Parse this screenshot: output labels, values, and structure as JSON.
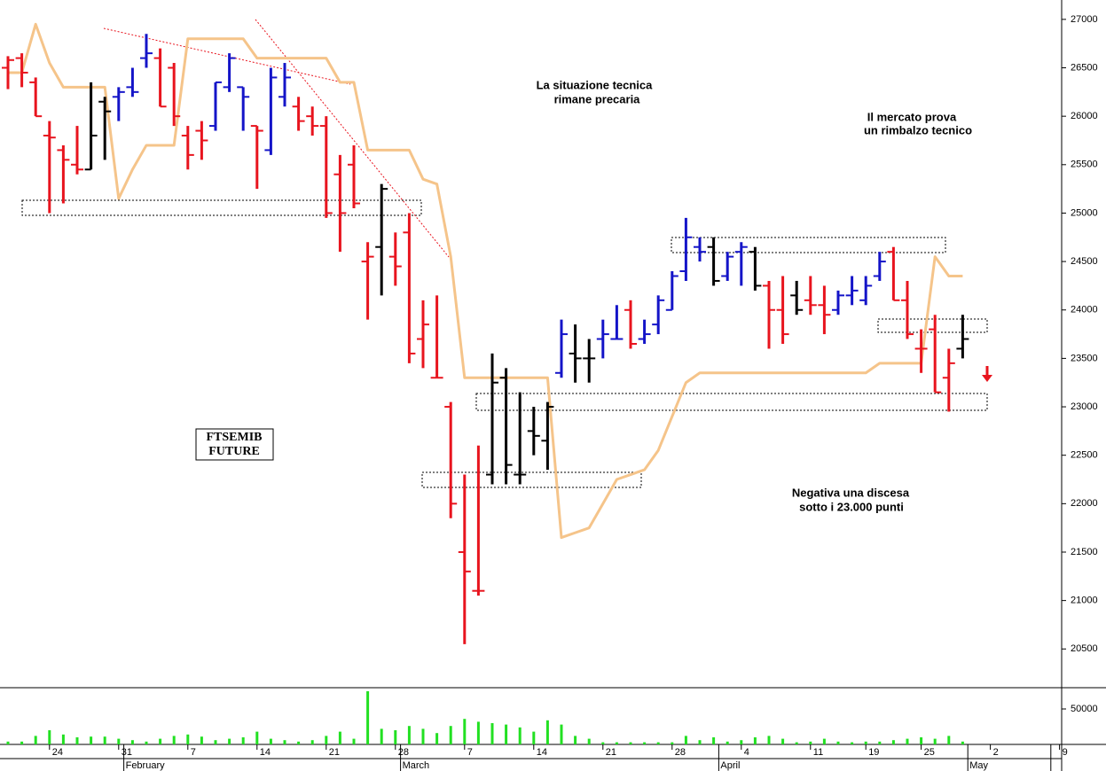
{
  "chart_data": {
    "type": "ohlc",
    "categories": [
      null,
      null,
      null,
      "24",
      null,
      null,
      null,
      null,
      "31",
      null,
      null,
      null,
      null,
      "7",
      null,
      null,
      null,
      null,
      "14",
      null,
      null,
      null,
      null,
      "21",
      null,
      null,
      null,
      null,
      "28",
      null,
      null,
      null,
      null,
      "7",
      null,
      null,
      null,
      null,
      "14",
      null,
      null,
      null,
      null,
      "21",
      null,
      null,
      null,
      null,
      "28",
      null,
      null,
      null,
      null,
      "4",
      null,
      null,
      null,
      null,
      "11",
      null,
      null,
      null,
      "19",
      null,
      null,
      null,
      "25",
      null,
      null,
      null,
      null,
      "2",
      null,
      null,
      null,
      null,
      "9"
    ],
    "months": [
      null,
      null,
      null,
      null,
      null,
      null,
      null,
      null,
      null,
      "February",
      null,
      null,
      null,
      null,
      null,
      null,
      null,
      null,
      null,
      null,
      null,
      null,
      null,
      null,
      null,
      null,
      null,
      null,
      null,
      "March",
      null,
      null,
      null,
      null,
      null,
      null,
      null,
      null,
      null,
      null,
      null,
      null,
      null,
      null,
      null,
      null,
      null,
      null,
      null,
      null,
      null,
      null,
      "April",
      null,
      null,
      null,
      null,
      null,
      null,
      null,
      null,
      null,
      null,
      null,
      null,
      null,
      null,
      null,
      null,
      null,
      "May",
      null,
      null,
      null,
      null,
      null
    ],
    "open": [
      26500,
      26600,
      26350,
      25800,
      25650,
      25500,
      25450,
      26150,
      26200,
      26300,
      26600,
      26600,
      26500,
      25800,
      25850,
      25900,
      26300,
      26300,
      25900,
      25650,
      26200,
      26100,
      26000,
      25900,
      25400,
      25500,
      24500,
      24650,
      24550,
      24800,
      23700,
      23300,
      23000,
      21500,
      21100,
      22300,
      23300,
      22300,
      22750,
      22650,
      23350,
      23550,
      23500,
      23700,
      23700,
      24000,
      23700,
      23850,
      24000,
      24400,
      24650,
      24650,
      24350,
      24600,
      24600,
      24250,
      24000,
      24150,
      24100,
      24050,
      24000,
      24150,
      24100,
      24350,
      24600,
      24100,
      23600,
      23800,
      23300,
      23600,
      null,
      null,
      null,
      null,
      null,
      null,
      null
    ],
    "high": [
      26620,
      26650,
      26400,
      25950,
      25700,
      25900,
      26350,
      26200,
      26300,
      26500,
      26850,
      26700,
      26550,
      25900,
      25950,
      26350,
      26650,
      26300,
      25900,
      26500,
      26550,
      26200,
      26100,
      26000,
      25600,
      25700,
      24700,
      25300,
      24800,
      25000,
      24100,
      24150,
      23050,
      22300,
      22600,
      23550,
      23400,
      23150,
      23000,
      23050,
      23900,
      23850,
      23700,
      23900,
      24050,
      24100,
      23900,
      24150,
      24400,
      24950,
      24750,
      24750,
      24600,
      24700,
      24650,
      24300,
      24350,
      24300,
      24350,
      24250,
      24200,
      24350,
      24350,
      24600,
      24650,
      24300,
      23800,
      23950,
      23600,
      23950,
      null,
      null,
      null,
      null,
      null,
      null,
      null
    ],
    "low": [
      26280,
      26300,
      26000,
      25000,
      25100,
      25400,
      25450,
      25550,
      25950,
      26200,
      26500,
      26100,
      25900,
      25450,
      25550,
      25850,
      26250,
      25850,
      25250,
      25600,
      26100,
      25850,
      25800,
      24950,
      24600,
      25050,
      23900,
      24150,
      24250,
      23450,
      23400,
      23300,
      21850,
      20550,
      21050,
      22200,
      22200,
      22200,
      22500,
      22350,
      23300,
      23250,
      23250,
      23500,
      23700,
      23600,
      23650,
      23750,
      24000,
      24300,
      24500,
      24250,
      24300,
      24250,
      24200,
      23600,
      23650,
      23950,
      23950,
      23750,
      23950,
      24050,
      24050,
      24300,
      24100,
      23700,
      23350,
      23150,
      22950,
      23500,
      null,
      null,
      null,
      null,
      null,
      null,
      null
    ],
    "close": [
      26580,
      26450,
      26000,
      25780,
      25550,
      25450,
      25800,
      26050,
      26250,
      26250,
      26650,
      26100,
      26000,
      25600,
      25750,
      26350,
      26600,
      26200,
      25850,
      26400,
      26400,
      25950,
      25900,
      25000,
      25000,
      25100,
      24550,
      25250,
      24450,
      23550,
      23850,
      23300,
      22000,
      21300,
      21100,
      23250,
      22400,
      22300,
      22700,
      23000,
      23750,
      23500,
      23500,
      23750,
      23700,
      23650,
      23750,
      24100,
      24350,
      24750,
      24600,
      24300,
      24550,
      24650,
      24250,
      24000,
      23750,
      24000,
      24050,
      23950,
      24150,
      24200,
      24250,
      24500,
      24100,
      23750,
      23600,
      23150,
      23450,
      23700,
      null,
      null,
      null,
      null,
      null,
      null,
      null
    ],
    "bar_colors": [
      "#e8141e",
      "#e8141e",
      "#e8141e",
      "#e8141e",
      "#e8141e",
      "#e8141e",
      "#000000",
      "#000000",
      "#1414c8",
      "#1414c8",
      "#1414c8",
      "#e8141e",
      "#e8141e",
      "#e8141e",
      "#e8141e",
      "#1414c8",
      "#1414c8",
      "#1414c8",
      "#e8141e",
      "#1414c8",
      "#1414c8",
      "#e8141e",
      "#e8141e",
      "#e8141e",
      "#e8141e",
      "#e8141e",
      "#e8141e",
      "#000000",
      "#e8141e",
      "#e8141e",
      "#e8141e",
      "#e8141e",
      "#e8141e",
      "#e8141e",
      "#e8141e",
      "#000000",
      "#000000",
      "#000000",
      "#000000",
      "#000000",
      "#1414c8",
      "#000000",
      "#000000",
      "#1414c8",
      "#1414c8",
      "#e8141e",
      "#1414c8",
      "#1414c8",
      "#1414c8",
      "#1414c8",
      "#1414c8",
      "#000000",
      "#1414c8",
      "#1414c8",
      "#000000",
      "#e8141e",
      "#e8141e",
      "#000000",
      "#e8141e",
      "#e8141e",
      "#1414c8",
      "#1414c8",
      "#1414c8",
      "#1414c8",
      "#e8141e",
      "#e8141e",
      "#e8141e",
      "#e8141e",
      "#e8141e",
      "#000000",
      null,
      null,
      null,
      null,
      null,
      null,
      null
    ],
    "overlay": {
      "color": "#f5c48a",
      "values": [
        26450,
        26450,
        26950,
        26550,
        26300,
        26300,
        26300,
        26300,
        25150,
        25450,
        25700,
        25700,
        25700,
        26800,
        26800,
        26800,
        26800,
        26800,
        26600,
        26600,
        26600,
        26600,
        26600,
        26600,
        26350,
        26350,
        25650,
        25650,
        25650,
        25650,
        25350,
        25300,
        24550,
        23300,
        23300,
        23300,
        23300,
        23300,
        23300,
        23300,
        21650,
        21700,
        21750,
        22000,
        22250,
        22300,
        22350,
        22550,
        22900,
        23250,
        23350,
        23350,
        23350,
        23350,
        23350,
        23350,
        23350,
        23350,
        23350,
        23350,
        23350,
        23350,
        23350,
        23450,
        23450,
        23450,
        23450,
        24550,
        24350,
        24350,
        null,
        null,
        null,
        null,
        null,
        null,
        null
      ]
    },
    "ylim": [
      20100,
      27200
    ],
    "yticks": [
      20500,
      21000,
      21500,
      22000,
      22500,
      23000,
      23500,
      24000,
      24500,
      25000,
      25500,
      26000,
      26500,
      27000
    ],
    "volume": {
      "color": "#22e022",
      "ylim": [
        0,
        80000
      ],
      "yticks": [
        50000
      ],
      "values": [
        4000,
        4000,
        12000,
        20000,
        14000,
        10000,
        11000,
        11000,
        8000,
        6000,
        4000,
        8000,
        12000,
        14000,
        11000,
        6000,
        8000,
        10000,
        18000,
        8000,
        6000,
        4000,
        6000,
        12000,
        18000,
        8000,
        75000,
        22000,
        20000,
        26000,
        22000,
        16000,
        26000,
        36000,
        32000,
        30000,
        28000,
        24000,
        18000,
        34000,
        28000,
        12000,
        8000,
        3000,
        3000,
        3000,
        3000,
        3000,
        3000,
        12000,
        6000,
        10000,
        4000,
        6000,
        10000,
        12000,
        8000,
        3000,
        4000,
        8000,
        4000,
        3000,
        4000,
        4000,
        6000,
        8000,
        10000,
        8000,
        12000,
        4000,
        null,
        null,
        null,
        null,
        null,
        null,
        null
      ]
    },
    "label_box": [
      "FTSEMIB",
      "FUTURE"
    ],
    "annotations": [
      {
        "lines": [
          "La situazione tecnica",
          "rimane precaria"
        ],
        "color": "#e8141e"
      },
      {
        "lines": [
          "Il mercato prova",
          "un rimbalzo tecnico"
        ],
        "color": "#000000"
      },
      {
        "lines": [
          "Negativa una discesa",
          "sotto i 23.000 punti"
        ],
        "color": "#e8141e"
      }
    ]
  }
}
